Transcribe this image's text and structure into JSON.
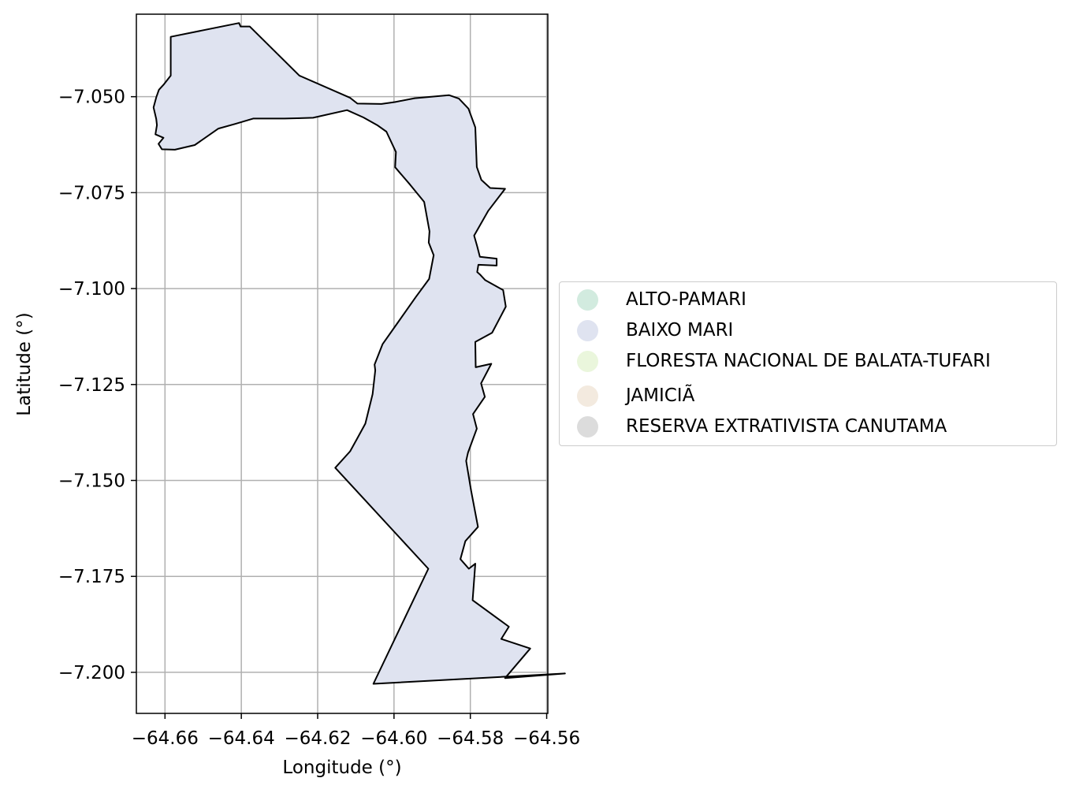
{
  "chart_data": {
    "type": "map",
    "xlabel": "Longitude (°)",
    "ylabel": "Latitude (°)",
    "xlim": [
      -64.6675,
      -64.5597
    ],
    "ylim": [
      -7.2107,
      -7.0285
    ],
    "xticks": [
      "−64.66",
      "−64.64",
      "−64.62",
      "−64.60",
      "−64.58",
      "−64.56"
    ],
    "yticks": [
      "−7.050",
      "−7.075",
      "−7.100",
      "−7.125",
      "−7.150",
      "−7.175",
      "−7.200"
    ],
    "grid": true,
    "legend_position": "center-left outside",
    "legend": [
      {
        "label": "ALTO-PAMARI",
        "color": "#d2ebdf"
      },
      {
        "label": "BAIXO MARI",
        "color": "#dfe3f0"
      },
      {
        "label": "FLORESTA NACIONAL DE BALATA-TUFARI",
        "color": "#eaf6dc"
      },
      {
        "label": "JAMICIÃ",
        "color": "#f3eadf"
      },
      {
        "label": "RESERVA EXTRATIVISTA CANUTAMA",
        "color": "#dcdcdc"
      }
    ],
    "boundary_outline": [
      [
        -64.6585,
        -7.0344
      ],
      [
        -64.6406,
        -7.0308
      ],
      [
        -64.6402,
        -7.0317
      ],
      [
        -64.6378,
        -7.0317
      ],
      [
        -64.6248,
        -7.0445
      ],
      [
        -64.6115,
        -7.0503
      ],
      [
        -64.6096,
        -7.0518
      ],
      [
        -64.6033,
        -7.0519
      ],
      [
        -64.5998,
        -7.0514
      ],
      [
        -64.5946,
        -7.0504
      ],
      [
        -64.5856,
        -7.0496
      ],
      [
        -64.583,
        -7.0505
      ],
      [
        -64.5805,
        -7.0531
      ],
      [
        -64.5787,
        -7.058
      ],
      [
        -64.5783,
        -7.0683
      ],
      [
        -64.5771,
        -7.0717
      ],
      [
        -64.5748,
        -7.0738
      ],
      [
        -64.5709,
        -7.074
      ],
      [
        -64.5753,
        -7.0797
      ],
      [
        -64.579,
        -7.0862
      ],
      [
        -64.5782,
        -7.089
      ],
      [
        -64.5775,
        -7.0917
      ],
      [
        -64.5731,
        -7.0922
      ],
      [
        -64.5731,
        -7.094
      ],
      [
        -64.5779,
        -7.0938
      ],
      [
        -64.5782,
        -7.0957
      ],
      [
        -64.5775,
        -7.0963
      ],
      [
        -64.5761,
        -7.0978
      ],
      [
        -64.5714,
        -7.1004
      ],
      [
        -64.5707,
        -7.1047
      ],
      [
        -64.5743,
        -7.1115
      ],
      [
        -64.5787,
        -7.1139
      ],
      [
        -64.5786,
        -7.1205
      ],
      [
        -64.5745,
        -7.1196
      ],
      [
        -64.5772,
        -7.1247
      ],
      [
        -64.5762,
        -7.1282
      ],
      [
        -64.5793,
        -7.1327
      ],
      [
        -64.5783,
        -7.1365
      ],
      [
        -64.5806,
        -7.1427
      ],
      [
        -64.5811,
        -7.1449
      ],
      [
        -64.5798,
        -7.1527
      ],
      [
        -64.578,
        -7.1621
      ],
      [
        -64.5813,
        -7.1658
      ],
      [
        -64.5826,
        -7.1705
      ],
      [
        -64.5804,
        -7.173
      ],
      [
        -64.5787,
        -7.1717
      ],
      [
        -64.5794,
        -7.1812
      ],
      [
        -64.5699,
        -7.1881
      ],
      [
        -64.5719,
        -7.1913
      ],
      [
        -64.5643,
        -7.1938
      ],
      [
        -64.5709,
        -7.2015
      ],
      [
        -64.5552,
        -7.2003
      ],
      [
        -64.6054,
        -7.203
      ],
      [
        -64.591,
        -7.173
      ],
      [
        -64.6154,
        -7.1467
      ],
      [
        -64.6115,
        -7.1424
      ],
      [
        -64.6096,
        -7.139
      ],
      [
        -64.6075,
        -7.1352
      ],
      [
        -64.6056,
        -7.1275
      ],
      [
        -64.6049,
        -7.1213
      ],
      [
        -64.6051,
        -7.1198
      ],
      [
        -64.603,
        -7.1145
      ],
      [
        -64.5986,
        -7.1083
      ],
      [
        -64.5943,
        -7.1022
      ],
      [
        -64.5908,
        -7.0975
      ],
      [
        -64.5896,
        -7.0913
      ],
      [
        -64.5909,
        -7.088
      ],
      [
        -64.5907,
        -7.0851
      ],
      [
        -64.5921,
        -7.0774
      ],
      [
        -64.5958,
        -7.0729
      ],
      [
        -64.5997,
        -7.0684
      ],
      [
        -64.5995,
        -7.0644
      ],
      [
        -64.602,
        -7.0591
      ],
      [
        -64.6044,
        -7.0574
      ],
      [
        -64.608,
        -7.0554
      ],
      [
        -64.6123,
        -7.0535
      ],
      [
        -64.6212,
        -7.0555
      ],
      [
        -64.6287,
        -7.0557
      ],
      [
        -64.6369,
        -7.0557
      ],
      [
        -64.6416,
        -7.0571
      ],
      [
        -64.646,
        -7.0583
      ],
      [
        -64.6522,
        -7.0626
      ],
      [
        -64.6574,
        -7.0638
      ],
      [
        -64.6608,
        -7.0637
      ],
      [
        -64.6617,
        -7.0623
      ],
      [
        -64.6604,
        -7.0607
      ],
      [
        -64.6625,
        -7.0598
      ],
      [
        -64.6621,
        -7.0574
      ],
      [
        -64.6623,
        -7.0558
      ],
      [
        -64.663,
        -7.0528
      ],
      [
        -64.6623,
        -7.0502
      ],
      [
        -64.6616,
        -7.0482
      ],
      [
        -64.6604,
        -7.0469
      ],
      [
        -64.6585,
        -7.0445
      ],
      [
        -64.6585,
        -7.0344
      ]
    ]
  }
}
